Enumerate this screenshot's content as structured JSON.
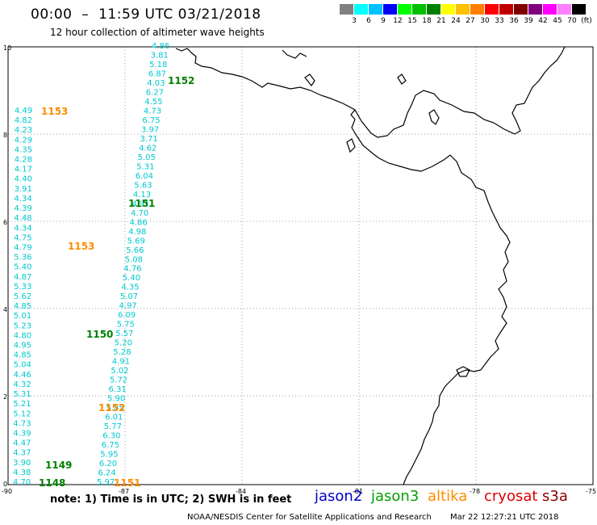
{
  "header": {
    "title": "00:00  –  11:59 UTC 03/21/2018",
    "subtitle": "12 hour collection of altimeter wave heights"
  },
  "legend": {
    "colors": [
      "#808080",
      "#00ffff",
      "#00c0ff",
      "#0000ff",
      "#00ff00",
      "#00c000",
      "#008000",
      "#ffff00",
      "#ffc000",
      "#ff8000",
      "#ff0000",
      "#c00000",
      "#800000",
      "#800080",
      "#ff00ff",
      "#ff80ff",
      "#000000"
    ],
    "ticks": [
      "3",
      "6",
      "9",
      "12",
      "15",
      "18",
      "21",
      "24",
      "27",
      "30",
      "33",
      "36",
      "39",
      "42",
      "45",
      "70"
    ],
    "unit": "(ft)"
  },
  "axes": {
    "x_ticks": [
      "-90",
      "-87",
      "-84",
      "-81",
      "-78",
      "-75"
    ],
    "y_ticks": [
      "0",
      "2",
      "4",
      "6",
      "8",
      "10"
    ]
  },
  "swh_colors": {
    "cyan": "#00c8d0",
    "time_jason3": "#008000",
    "time_altika": "#ff8c00"
  },
  "track_a_values": [
    "4.86",
    "3.81",
    "5.18",
    "6.87",
    "4.03",
    "6.27",
    "4.55",
    "4.73",
    "6.75",
    "3.97",
    "3.71",
    "4.62",
    "5.05",
    "5.31",
    "6.04",
    "5.63",
    "4.13",
    "4.91",
    "4.70",
    "4.86",
    "4.98",
    "5.69",
    "5.66",
    "5.08",
    "4.76",
    "5.40",
    "4.35",
    "5.07",
    "4.97",
    "6.09",
    "5.75",
    "5.57",
    "5.20",
    "5.28",
    "4.91",
    "5.02",
    "5.72",
    "6.31",
    "5.90",
    "5.85",
    "6.01",
    "5.77",
    "6.30",
    "6.75",
    "5.95",
    "6.20",
    "6.24",
    "5.97"
  ],
  "track_b_values": [
    "4.49",
    "4.82",
    "4.23",
    "4.29",
    "4.35",
    "4.28",
    "4.17",
    "4.40",
    "3.91",
    "4.34",
    "4.39",
    "4.48",
    "4.34",
    "4.75",
    "4.79",
    "5.36",
    "5.40",
    "4.87",
    "5.33",
    "5.62",
    "4.85",
    "5.01",
    "5.23",
    "4.80",
    "4.95",
    "4.85",
    "5.04",
    "4.46",
    "4.32",
    "5.31",
    "5.21",
    "5.12",
    "4.73",
    "4.39",
    "4.47",
    "4.37",
    "3.90",
    "4.38",
    "4.70"
  ],
  "time_labels": {
    "t1152a": "1152",
    "t1151a": "1151",
    "t1150": "1150",
    "t1149": "1149",
    "t1148": "1148",
    "t1153a": "1153",
    "t1153b": "1153",
    "t1152b": "1152",
    "t1151b": "1151"
  },
  "note": "note:  1) Time is in UTC;  2) SWH is in feet",
  "satellites": [
    {
      "name": "jason2",
      "color": "#0000c8"
    },
    {
      "name": "jason3",
      "color": "#00a000"
    },
    {
      "name": "altika",
      "color": "#ff8c00"
    },
    {
      "name": "cryosat",
      "color": "#e00000"
    },
    {
      "name": "s3a",
      "color": "#8b0000"
    }
  ],
  "footer": {
    "center": "NOAA/NESDIS Center for Satellite Applications and Research",
    "timestamp": "Mar 22 12:27:21 UTC 2018"
  }
}
